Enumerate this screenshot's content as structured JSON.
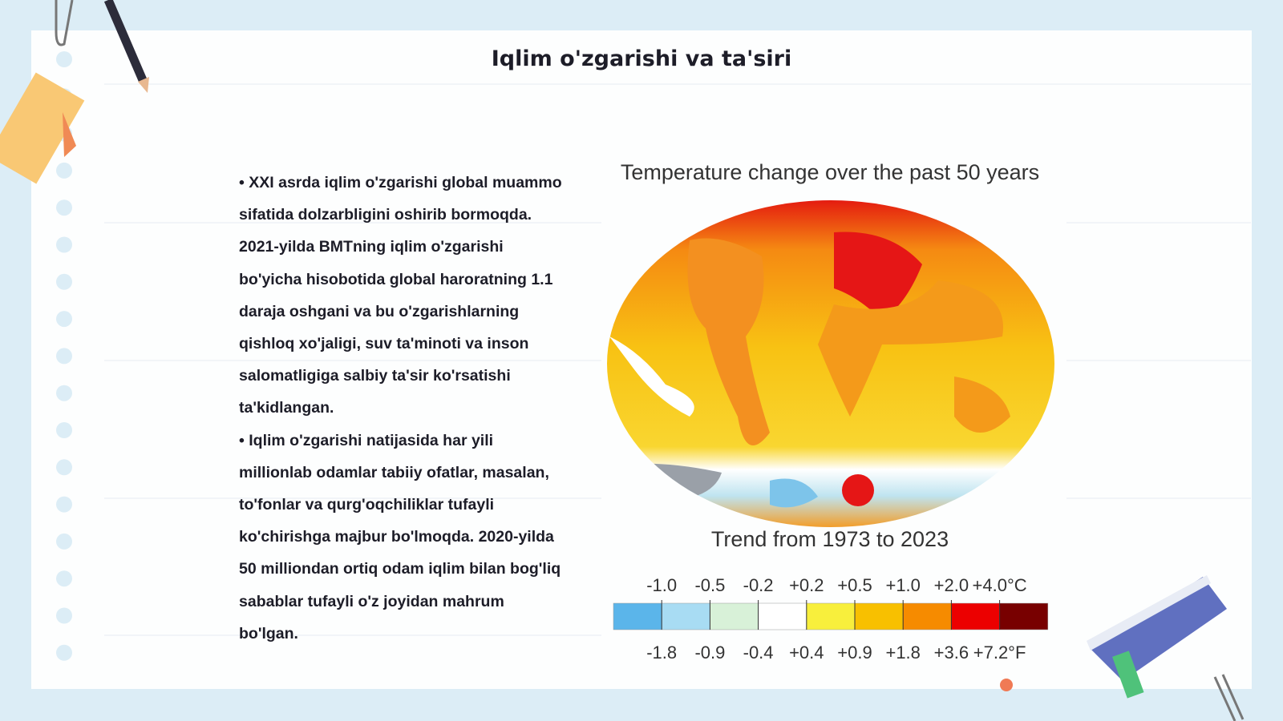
{
  "slide": {
    "title": "Iqlim o'zgarishi va ta'siri",
    "bullets": [
      "• XXI asrda iqlim o'zgarishi global muammo sifatida dolzarbligini oshirib bormoqda. 2021-yilda BMTning iqlim o'zgarishi bo'yicha hisobotida global haroratning 1.1 daraja oshgani va bu o'zgarishlarning qishloq xo'jaligi, suv ta'minoti va inson salomatligiga salbiy ta'sir ko'rsatishi ta'kidlangan.",
      "• Iqlim o'zgarishi natijasida har yili millionlab odamlar tabiiy ofatlar, masalan, to'fonlar va qurg'oqchiliklar tufayli ko'chirishga majbur bo'lmoqda. 2020-yilda 50 milliondan ortiq odam iqlim bilan bog'liq sabablar tufayli o'z joyidan mahrum bo'lgan."
    ],
    "figure": {
      "title": "Temperature change over the past 50 years",
      "caption": "Trend from 1973 to 2023",
      "legend_celsius": [
        "-1.0",
        "-0.5",
        "-0.2",
        "+0.2",
        "+0.5",
        "+1.0",
        "+2.0",
        "+4.0°C"
      ],
      "legend_fahrenheit": [
        "-1.8",
        "-0.9",
        "-0.4",
        "+0.4",
        "+0.9",
        "+1.8",
        "+3.6",
        "+7.2°F"
      ]
    }
  }
}
